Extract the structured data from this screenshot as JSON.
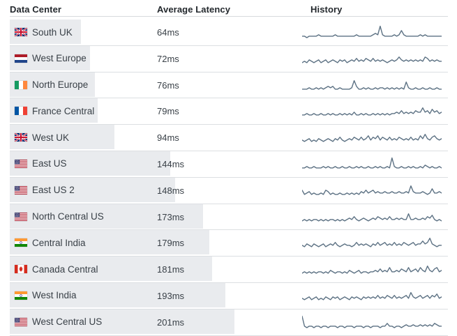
{
  "colors": {
    "bar_fill": "#e9ebee",
    "sparkline_stroke": "#5c7183",
    "row_border": "#dcdfe2",
    "header_text": "#23282d",
    "body_text": "#394047"
  },
  "table": {
    "columns": [
      {
        "key": "data_center",
        "label": "Data Center"
      },
      {
        "key": "average_latency",
        "label": "Average Latency"
      },
      {
        "key": "history",
        "label": "History"
      }
    ],
    "rows": [
      {
        "name": "South UK",
        "flag": "uk",
        "latency_label": "64ms",
        "latency_ms": 64,
        "history": [
          1,
          1,
          0,
          1,
          1,
          1,
          1,
          2,
          1,
          1,
          1,
          1,
          1,
          1,
          2,
          1,
          1,
          1,
          1,
          1,
          1,
          1,
          1,
          2,
          1,
          1,
          1,
          1,
          1,
          1,
          2,
          3,
          2,
          8,
          2,
          1,
          1,
          1,
          1,
          2,
          1,
          2,
          5,
          2,
          1,
          1,
          1,
          1,
          1,
          1,
          2,
          1,
          2,
          1,
          1,
          1,
          1,
          1,
          1,
          1
        ]
      },
      {
        "name": "West Europe",
        "flag": "netherlands",
        "latency_label": "72ms",
        "latency_ms": 72,
        "history": [
          1,
          2,
          1,
          3,
          2,
          1,
          2,
          3,
          1,
          2,
          3,
          1,
          2,
          3,
          2,
          1,
          3,
          2,
          3,
          1,
          2,
          3,
          2,
          4,
          2,
          3,
          2,
          4,
          3,
          2,
          4,
          2,
          3,
          2,
          3,
          2,
          1,
          2,
          3,
          2,
          3,
          5,
          3,
          2,
          3,
          2,
          3,
          2,
          3,
          2,
          3,
          2,
          5,
          4,
          2,
          3,
          2,
          3,
          2,
          2
        ]
      },
      {
        "name": "North Europe",
        "flag": "ireland",
        "latency_label": "76ms",
        "latency_ms": 76,
        "history": [
          1,
          1,
          1,
          2,
          1,
          1,
          2,
          1,
          2,
          1,
          2,
          3,
          2,
          3,
          1,
          1,
          2,
          1,
          1,
          1,
          1,
          2,
          7,
          3,
          1,
          1,
          2,
          1,
          2,
          1,
          1,
          2,
          1,
          2,
          2,
          1,
          2,
          1,
          2,
          1,
          2,
          1,
          2,
          1,
          6,
          2,
          1,
          1,
          2,
          1,
          1,
          2,
          1,
          1,
          2,
          1,
          1,
          2,
          1,
          1
        ]
      },
      {
        "name": "France Central",
        "flag": "france",
        "latency_label": "79ms",
        "latency_ms": 79,
        "history": [
          1,
          1,
          2,
          1,
          1,
          2,
          1,
          1,
          2,
          1,
          1,
          2,
          1,
          2,
          1,
          1,
          2,
          1,
          2,
          1,
          2,
          1,
          3,
          1,
          1,
          2,
          1,
          2,
          1,
          1,
          2,
          1,
          2,
          1,
          2,
          1,
          2,
          1,
          2,
          2,
          3,
          2,
          4,
          2,
          3,
          2,
          3,
          2,
          4,
          3,
          3,
          6,
          3,
          4,
          2,
          5,
          3,
          4,
          2,
          3
        ]
      },
      {
        "name": "West UK",
        "flag": "uk",
        "latency_label": "94ms",
        "latency_ms": 94,
        "history": [
          2,
          1,
          2,
          3,
          1,
          2,
          1,
          3,
          2,
          1,
          2,
          3,
          2,
          1,
          3,
          2,
          4,
          2,
          1,
          2,
          3,
          2,
          4,
          3,
          2,
          4,
          2,
          3,
          5,
          2,
          4,
          3,
          5,
          2,
          4,
          3,
          2,
          4,
          2,
          3,
          2,
          4,
          3,
          2,
          3,
          2,
          4,
          2,
          3,
          2,
          5,
          3,
          6,
          3,
          2,
          4,
          5,
          3,
          2,
          3
        ]
      },
      {
        "name": "East US",
        "flag": "usa",
        "latency_label": "144ms",
        "latency_ms": 144,
        "history": [
          1,
          1,
          2,
          1,
          1,
          2,
          1,
          1,
          1,
          2,
          1,
          2,
          1,
          1,
          2,
          1,
          1,
          2,
          1,
          1,
          2,
          1,
          1,
          2,
          1,
          2,
          1,
          1,
          2,
          1,
          1,
          2,
          1,
          2,
          1,
          1,
          2,
          1,
          8,
          2,
          1,
          1,
          2,
          1,
          1,
          2,
          1,
          2,
          1,
          1,
          2,
          1,
          3,
          2,
          1,
          2,
          1,
          1,
          2,
          1
        ]
      },
      {
        "name": "East US 2",
        "flag": "usa",
        "latency_label": "148ms",
        "latency_ms": 148,
        "history": [
          4,
          1,
          2,
          3,
          1,
          2,
          1,
          1,
          2,
          1,
          4,
          3,
          1,
          2,
          1,
          1,
          2,
          1,
          1,
          2,
          1,
          2,
          1,
          2,
          1,
          3,
          2,
          4,
          2,
          3,
          4,
          2,
          3,
          2,
          2,
          3,
          2,
          2,
          3,
          2,
          2,
          3,
          2,
          2,
          3,
          2,
          7,
          3,
          2,
          2,
          2,
          3,
          2,
          1,
          2,
          5,
          2,
          2,
          3,
          2
        ]
      },
      {
        "name": "North Central US",
        "flag": "usa",
        "latency_label": "173ms",
        "latency_ms": 173,
        "history": [
          1,
          2,
          1,
          2,
          1,
          2,
          2,
          1,
          2,
          1,
          2,
          1,
          2,
          2,
          1,
          2,
          1,
          2,
          1,
          2,
          3,
          2,
          4,
          2,
          1,
          2,
          3,
          2,
          1,
          2,
          3,
          2,
          4,
          3,
          2,
          3,
          2,
          4,
          2,
          2,
          3,
          2,
          3,
          2,
          2,
          6,
          2,
          2,
          3,
          2,
          2,
          3,
          2,
          4,
          3,
          5,
          2,
          1,
          2,
          1
        ]
      },
      {
        "name": "Central India",
        "flag": "india",
        "latency_label": "179ms",
        "latency_ms": 179,
        "history": [
          2,
          1,
          3,
          2,
          1,
          3,
          2,
          1,
          2,
          3,
          1,
          2,
          3,
          2,
          4,
          2,
          1,
          2,
          3,
          2,
          2,
          1,
          2,
          4,
          2,
          3,
          2,
          3,
          2,
          1,
          3,
          2,
          4,
          2,
          3,
          4,
          2,
          3,
          2,
          4,
          2,
          3,
          2,
          4,
          3,
          2,
          3,
          4,
          2,
          3,
          3,
          5,
          3,
          4,
          7,
          3,
          2,
          1,
          2,
          2
        ]
      },
      {
        "name": "Canada Central",
        "flag": "canada",
        "latency_label": "181ms",
        "latency_ms": 181,
        "history": [
          1,
          2,
          1,
          2,
          1,
          2,
          1,
          2,
          2,
          1,
          2,
          1,
          3,
          2,
          1,
          2,
          2,
          1,
          2,
          1,
          3,
          2,
          1,
          2,
          3,
          1,
          2,
          2,
          1,
          2,
          2,
          3,
          2,
          4,
          2,
          3,
          2,
          5,
          2,
          2,
          3,
          2,
          4,
          3,
          2,
          5,
          2,
          3,
          4,
          2,
          5,
          3,
          2,
          6,
          3,
          2,
          4,
          5,
          2,
          3
        ]
      },
      {
        "name": "West India",
        "flag": "india",
        "latency_label": "193ms",
        "latency_ms": 193,
        "history": [
          2,
          1,
          2,
          3,
          1,
          2,
          3,
          1,
          2,
          1,
          3,
          2,
          1,
          3,
          2,
          3,
          1,
          2,
          3,
          2,
          1,
          3,
          2,
          3,
          2,
          1,
          3,
          2,
          3,
          2,
          3,
          2,
          4,
          2,
          3,
          2,
          4,
          3,
          2,
          4,
          2,
          3,
          2,
          3,
          4,
          2,
          6,
          3,
          2,
          3,
          4,
          2,
          3,
          4,
          2,
          4,
          3,
          5,
          2,
          3
        ]
      },
      {
        "name": "West Central US",
        "flag": "usa",
        "latency_label": "201ms",
        "latency_ms": 201,
        "history": [
          8,
          1,
          0,
          1,
          1,
          0,
          1,
          1,
          0,
          1,
          1,
          0,
          1,
          1,
          1,
          0,
          1,
          1,
          0,
          1,
          1,
          1,
          0,
          1,
          1,
          1,
          0,
          1,
          1,
          0,
          1,
          1,
          1,
          0,
          1,
          1,
          3,
          1,
          1,
          0,
          1,
          1,
          0,
          1,
          2,
          1,
          1,
          2,
          1,
          1,
          2,
          1,
          2,
          1,
          2,
          1,
          3,
          2,
          1,
          1
        ]
      }
    ]
  }
}
